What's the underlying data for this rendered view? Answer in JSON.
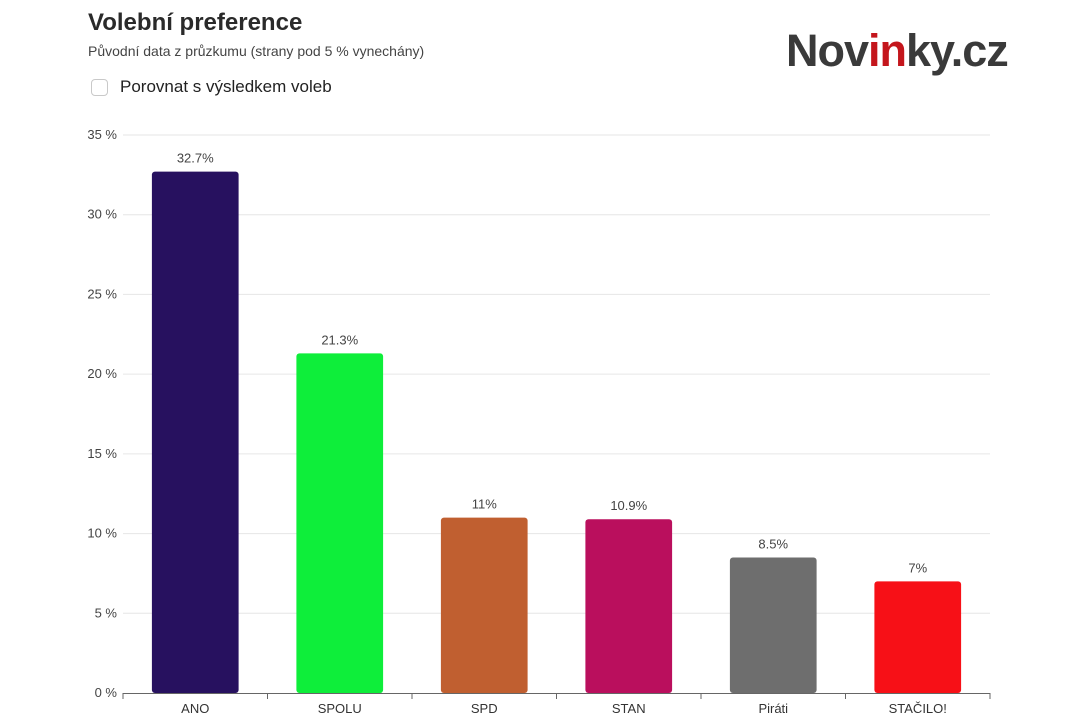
{
  "header": {
    "title": "Volební preference",
    "subtitle": "Původní data z průzkumu (strany pod 5 % vynechány)",
    "logo": {
      "text_main": "Nov",
      "text_accent": "in",
      "text_end": "ky.cz",
      "accent_color": "#c4161c"
    }
  },
  "controls": {
    "compare_label": "Porovnat s výsledkem voleb",
    "compare_checked": false
  },
  "chart_data": {
    "type": "bar",
    "categories": [
      "ANO",
      "SPOLU",
      "SPD",
      "STAN",
      "Piráti",
      "STAČILO!"
    ],
    "values": [
      32.7,
      21.3,
      11,
      10.9,
      8.5,
      7
    ],
    "data_labels": [
      "32.7%",
      "21.3%",
      "11%",
      "10.9%",
      "8.5%",
      "7%"
    ],
    "colors": [
      "#27115f",
      "#0eee3a",
      "#c05f30",
      "#ba0f5d",
      "#6e6e6e",
      "#f71017"
    ],
    "ylim": [
      0,
      35
    ],
    "yticks": [
      0,
      5,
      10,
      15,
      20,
      25,
      30,
      35
    ],
    "ytick_labels": [
      "0 %",
      "5 %",
      "10 %",
      "15 %",
      "20 %",
      "25 %",
      "30 %",
      "35 %"
    ],
    "grid": true,
    "legend": false
  }
}
